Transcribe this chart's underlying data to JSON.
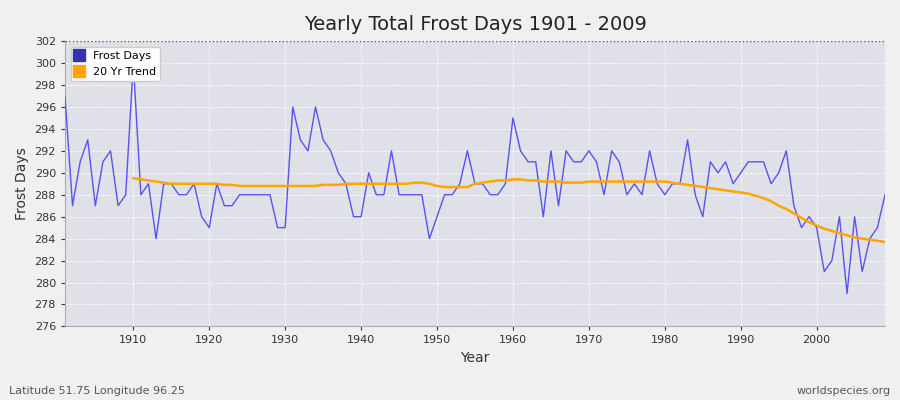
{
  "title": "Yearly Total Frost Days 1901 - 2009",
  "xlabel": "Year",
  "ylabel": "Frost Days",
  "subtitle": "Latitude 51.75 Longitude 96.25",
  "watermark": "worldspecies.org",
  "years": [
    1901,
    1902,
    1903,
    1904,
    1905,
    1906,
    1907,
    1908,
    1909,
    1910,
    1911,
    1912,
    1913,
    1914,
    1915,
    1916,
    1917,
    1918,
    1919,
    1920,
    1921,
    1922,
    1923,
    1924,
    1925,
    1926,
    1927,
    1928,
    1929,
    1930,
    1931,
    1932,
    1933,
    1934,
    1935,
    1936,
    1937,
    1938,
    1939,
    1940,
    1941,
    1942,
    1943,
    1944,
    1945,
    1946,
    1947,
    1948,
    1949,
    1950,
    1951,
    1952,
    1953,
    1954,
    1955,
    1956,
    1957,
    1958,
    1959,
    1960,
    1961,
    1962,
    1963,
    1964,
    1965,
    1966,
    1967,
    1968,
    1969,
    1970,
    1971,
    1972,
    1973,
    1974,
    1975,
    1976,
    1977,
    1978,
    1979,
    1980,
    1981,
    1982,
    1983,
    1984,
    1985,
    1986,
    1987,
    1988,
    1989,
    1990,
    1991,
    1992,
    1993,
    1994,
    1995,
    1996,
    1997,
    1998,
    1999,
    2000,
    2001,
    2002,
    2003,
    2004,
    2005,
    2006,
    2007,
    2008,
    2009
  ],
  "frost_days": [
    297,
    287,
    291,
    293,
    287,
    291,
    292,
    287,
    288,
    300,
    288,
    289,
    284,
    289,
    289,
    288,
    288,
    289,
    286,
    285,
    289,
    287,
    287,
    288,
    288,
    288,
    288,
    288,
    285,
    285,
    296,
    293,
    292,
    296,
    293,
    292,
    290,
    289,
    286,
    286,
    290,
    288,
    288,
    292,
    288,
    288,
    288,
    288,
    284,
    286,
    288,
    288,
    289,
    292,
    289,
    289,
    288,
    288,
    289,
    295,
    292,
    291,
    291,
    286,
    292,
    287,
    292,
    291,
    291,
    292,
    291,
    288,
    292,
    291,
    288,
    289,
    288,
    292,
    289,
    288,
    289,
    289,
    293,
    288,
    286,
    291,
    290,
    291,
    289,
    290,
    291,
    291,
    291,
    289,
    290,
    292,
    287,
    285,
    286,
    285,
    281,
    282,
    286,
    279,
    286,
    281,
    284,
    285,
    288
  ],
  "trend_years": [
    1910,
    1911,
    1912,
    1913,
    1914,
    1915,
    1916,
    1917,
    1918,
    1919,
    1920,
    1921,
    1922,
    1923,
    1924,
    1925,
    1926,
    1927,
    1928,
    1929,
    1930,
    1931,
    1932,
    1933,
    1934,
    1935,
    1936,
    1937,
    1938,
    1939,
    1940,
    1941,
    1942,
    1943,
    1944,
    1945,
    1946,
    1947,
    1948,
    1949,
    1950,
    1951,
    1952,
    1953,
    1954,
    1955,
    1956,
    1957,
    1958,
    1959,
    1960,
    1961,
    1962,
    1963,
    1964,
    1965,
    1966,
    1967,
    1968,
    1969,
    1970,
    1971,
    1972,
    1973,
    1974,
    1975,
    1976,
    1977,
    1978,
    1979,
    1980,
    1981,
    1982,
    1983,
    1984,
    1985,
    1986,
    1987,
    1988,
    1989,
    1990,
    1991,
    1992,
    1993,
    1994,
    1995,
    1996,
    1997,
    1998,
    1999,
    2000,
    2001,
    2002,
    2003,
    2004,
    2005,
    2006,
    2007,
    2008,
    2009
  ],
  "trend_values": [
    289.5,
    289.4,
    289.3,
    289.2,
    289.1,
    289.0,
    289.0,
    289.0,
    289.0,
    289.0,
    289.0,
    289.0,
    288.9,
    288.9,
    288.8,
    288.8,
    288.8,
    288.8,
    288.8,
    288.8,
    288.8,
    288.8,
    288.8,
    288.8,
    288.8,
    288.9,
    288.9,
    288.9,
    289.0,
    289.0,
    289.0,
    289.0,
    289.0,
    289.0,
    289.0,
    289.0,
    289.0,
    289.1,
    289.1,
    289.0,
    288.8,
    288.7,
    288.7,
    288.7,
    288.7,
    289.0,
    289.1,
    289.2,
    289.3,
    289.3,
    289.4,
    289.4,
    289.3,
    289.3,
    289.2,
    289.2,
    289.2,
    289.1,
    289.1,
    289.1,
    289.2,
    289.2,
    289.2,
    289.2,
    289.2,
    289.2,
    289.2,
    289.2,
    289.2,
    289.2,
    289.2,
    289.1,
    289.0,
    288.9,
    288.8,
    288.7,
    288.6,
    288.5,
    288.4,
    288.3,
    288.2,
    288.1,
    287.9,
    287.7,
    287.4,
    287.0,
    286.7,
    286.3,
    285.9,
    285.5,
    285.2,
    284.9,
    284.7,
    284.5,
    284.3,
    284.1,
    284.0,
    283.9,
    283.8,
    283.7
  ],
  "line_color": "#5555ee",
  "trend_color": "#FFA500",
  "bg_color": "#f0f0f0",
  "plot_bg_color": "#e0e0e8",
  "ylim": [
    276,
    302
  ],
  "xlim": [
    1901,
    2009
  ],
  "yticks": [
    276,
    278,
    280,
    282,
    284,
    286,
    288,
    290,
    292,
    294,
    296,
    298,
    300,
    302
  ],
  "xticks": [
    1910,
    1920,
    1930,
    1940,
    1950,
    1960,
    1970,
    1980,
    1990,
    2000
  ],
  "dotted_line_y": 302,
  "title_fontsize": 14,
  "axis_label_fontsize": 10,
  "tick_fontsize": 8,
  "legend_square_color": "#3333aa",
  "legend_trend_color": "#FFA500"
}
